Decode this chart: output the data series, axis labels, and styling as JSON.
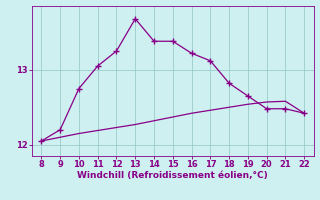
{
  "xlabel": "Windchill (Refroidissement éolien,°C)",
  "bg_color": "#cff0f0",
  "line_color": "#880088",
  "grid_color": "#99cccc",
  "x_main": [
    8,
    9,
    10,
    11,
    12,
    13,
    14,
    15,
    16,
    17,
    18,
    19,
    20,
    21,
    22
  ],
  "y_main": [
    12.05,
    12.2,
    12.75,
    13.05,
    13.25,
    13.68,
    13.38,
    13.38,
    13.22,
    13.12,
    12.82,
    12.65,
    12.48,
    12.48,
    12.42
  ],
  "x_ref": [
    8,
    9,
    10,
    11,
    12,
    13,
    14,
    15,
    16,
    17,
    18,
    19,
    20,
    21,
    22
  ],
  "y_ref": [
    12.05,
    12.1,
    12.15,
    12.19,
    12.23,
    12.27,
    12.32,
    12.37,
    12.42,
    12.46,
    12.5,
    12.54,
    12.57,
    12.58,
    12.42
  ],
  "xlim": [
    7.5,
    22.5
  ],
  "ylim": [
    11.85,
    13.85
  ],
  "yticks": [
    12,
    13
  ],
  "xticks": [
    8,
    9,
    10,
    11,
    12,
    13,
    14,
    15,
    16,
    17,
    18,
    19,
    20,
    21,
    22
  ],
  "marker": "+",
  "marker_size": 4,
  "marker_edge_width": 1.0,
  "line_width": 0.9,
  "xlabel_fontsize": 6.5,
  "tick_fontsize": 6.0
}
